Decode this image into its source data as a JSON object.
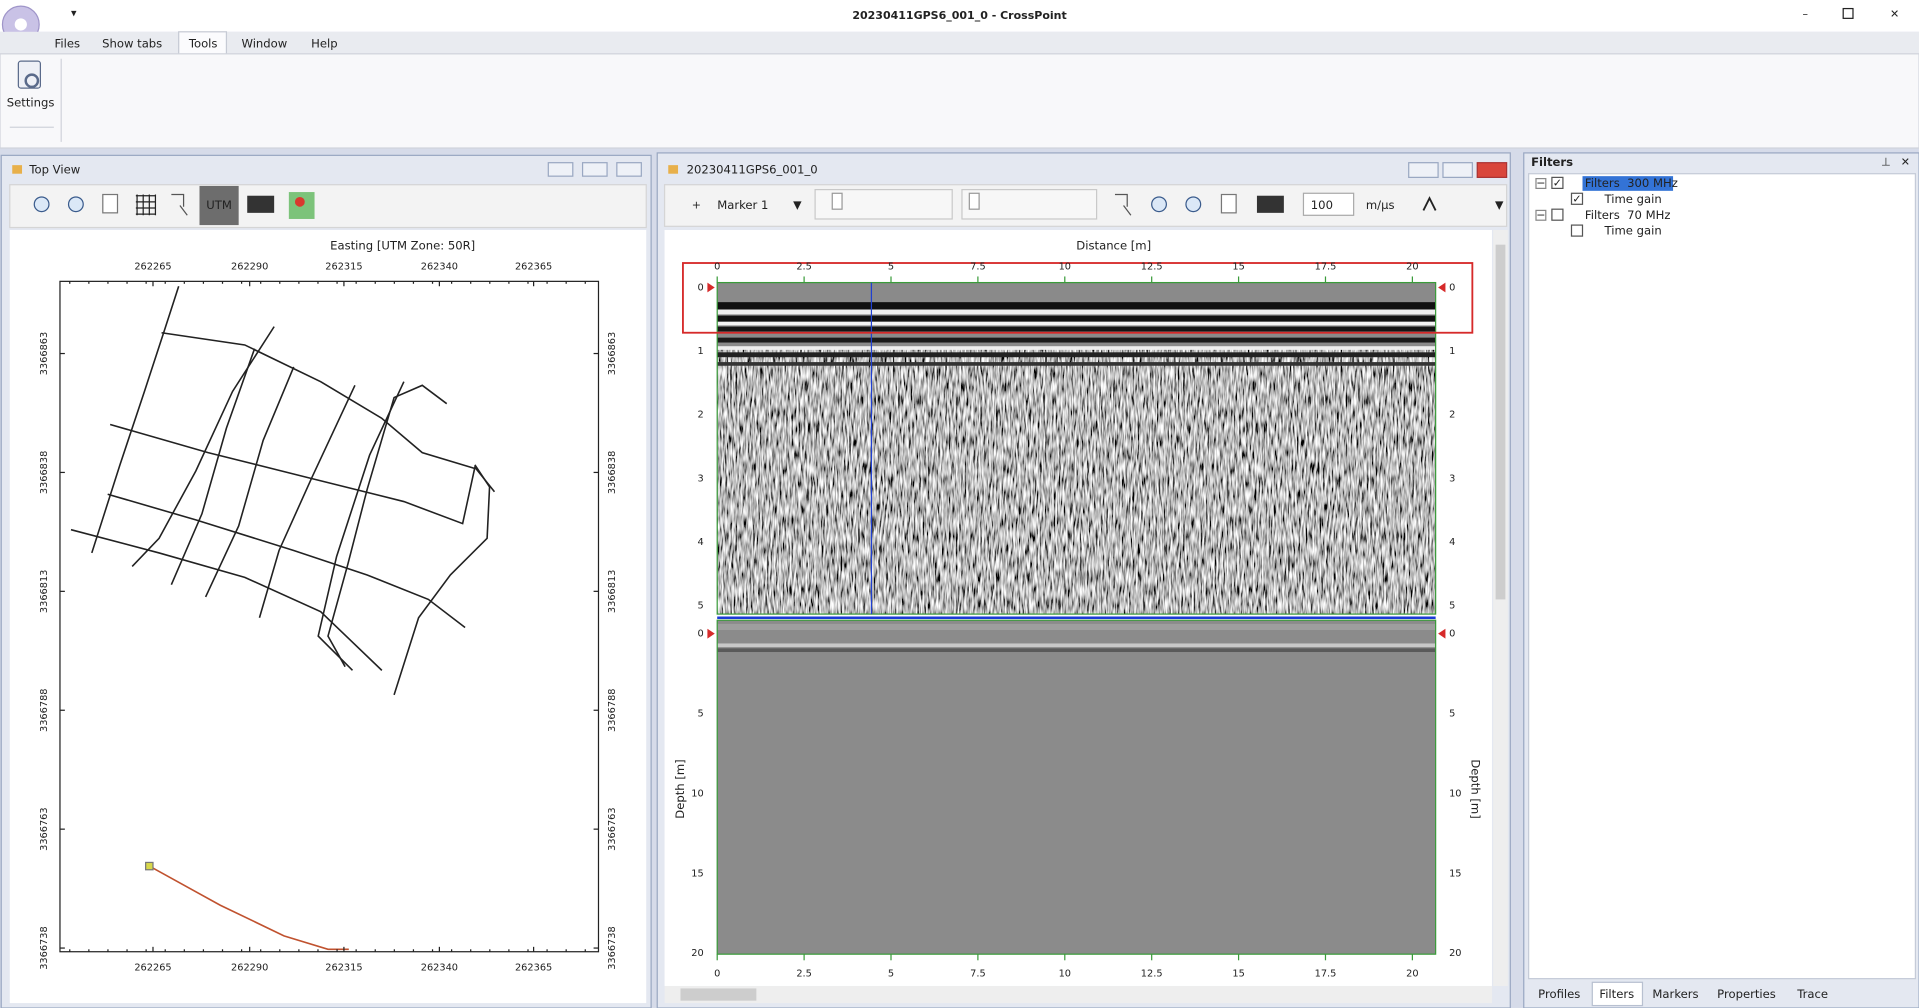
{
  "window": {
    "title": "20230411GPS6_001_0 - CrossPoint"
  },
  "menu": [
    "Files",
    "Show tabs",
    "Tools",
    "Window",
    "Help"
  ],
  "ribbon": {
    "settings": "Settings"
  },
  "top_view": {
    "title": "Top View",
    "utm": "UTM",
    "axis_title": "Easting [UTM Zone: 50R]",
    "x_ticks": [
      262265,
      262290,
      262315,
      262340,
      262365
    ],
    "y_ticks": [
      3366863,
      3366838,
      3366813,
      3366788,
      3366763,
      3366738
    ]
  },
  "profile": {
    "title": "20230411GPS6_001_0",
    "marker": "Marker 1",
    "velocity": 100,
    "velocity_unit": "m/µs",
    "x_label": "Distance [m]",
    "x_ticks": [
      0,
      2.5,
      5,
      7.5,
      10,
      12.5,
      15,
      17.5,
      20
    ],
    "upper_depth_ticks": [
      0,
      1,
      2,
      3,
      4,
      5
    ],
    "lower_depth_ticks": [
      0,
      5,
      10,
      15,
      20
    ],
    "y_label": "Depth [m]"
  },
  "filters": {
    "title": "Filters",
    "tree": [
      {
        "label": "Filters  300 MHz",
        "children": [
          "Time gain"
        ]
      },
      {
        "label": "Filters  70 MHz",
        "children": [
          "Time gain"
        ]
      }
    ]
  },
  "tabs": [
    "Profiles",
    "Filters",
    "Markers",
    "Properties",
    "Trace"
  ]
}
